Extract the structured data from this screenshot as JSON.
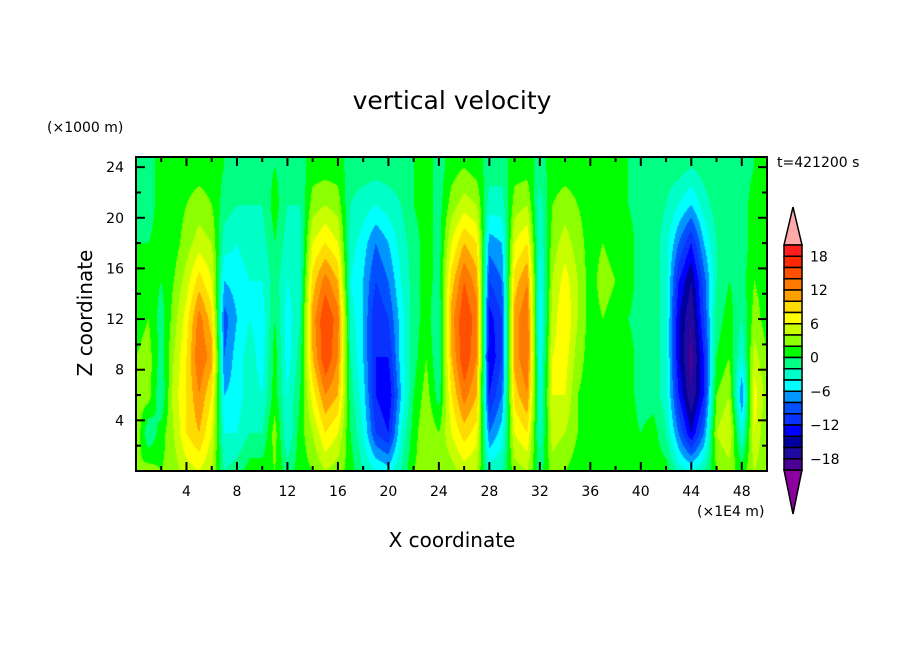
{
  "chart_data": {
    "type": "heatmap",
    "title": "vertical velocity",
    "xlabel": "X coordinate",
    "ylabel": "Z coordinate",
    "x_unit": "(×1E4 m)",
    "y_unit": "(×1000 m)",
    "annotation": "t=421200 s",
    "xlim": [
      0,
      50
    ],
    "ylim": [
      0,
      24.8
    ],
    "xticks": [
      4,
      8,
      12,
      16,
      20,
      24,
      28,
      32,
      36,
      40,
      44,
      48
    ],
    "yticks": [
      4,
      8,
      12,
      16,
      20,
      24
    ],
    "colorbar": {
      "levels": [
        -20,
        -18,
        -16,
        -14,
        -12,
        -10,
        -8,
        -6,
        -4,
        -2,
        0,
        2,
        4,
        6,
        8,
        10,
        12,
        14,
        16,
        18,
        20
      ],
      "labels": [
        18,
        12,
        6,
        0,
        -6,
        -12,
        -18
      ],
      "colors": [
        "#4b0096",
        "#1e0aa0",
        "#0000a0",
        "#0000ff",
        "#0a32ff",
        "#0050ff",
        "#0096ff",
        "#00ffff",
        "#00ffc8",
        "#00ff82",
        "#00ff00",
        "#8cff00",
        "#c8ff00",
        "#ffff00",
        "#ffdc00",
        "#ffa000",
        "#ff7800",
        "#ff5000",
        "#ff2800",
        "#ff1e1e"
      ],
      "over_color": "#ffaaaa",
      "under_color": "#8c00a0"
    },
    "grid_x": [
      0,
      1,
      2,
      3,
      4,
      5,
      6,
      7,
      8,
      9,
      10,
      11,
      12,
      13,
      14,
      15,
      16,
      17,
      18,
      19,
      20,
      21,
      22,
      23,
      24,
      25,
      26,
      27,
      28,
      29,
      30,
      31,
      32,
      33,
      34,
      35,
      36,
      37,
      38,
      39,
      40,
      41,
      42,
      43,
      44,
      45,
      46,
      47,
      48,
      49,
      50
    ],
    "grid_z": [
      0,
      3,
      6,
      9,
      12,
      15,
      18,
      21,
      24
    ],
    "values": [
      [
        2,
        3,
        2,
        3,
        5,
        6,
        4,
        -2,
        -1,
        1,
        1,
        2,
        -1,
        1,
        2,
        4,
        3,
        1,
        -2,
        -4,
        -5,
        -2,
        2,
        3,
        3,
        3,
        5,
        4,
        -3,
        -2,
        3,
        4,
        -1,
        3,
        2,
        1,
        1,
        1,
        1,
        1,
        1,
        1,
        1,
        -3,
        -4,
        -2,
        2,
        3,
        1,
        4,
        2
      ],
      [
        4,
        -2,
        1,
        4,
        8,
        10,
        6,
        -4,
        -4,
        -2,
        -2,
        3,
        -4,
        1,
        4,
        8,
        6,
        0,
        -4,
        -10,
        -12,
        -4,
        1,
        4,
        2,
        6,
        9,
        7,
        -8,
        -5,
        6,
        8,
        -3,
        5,
        4,
        2,
        1,
        1,
        1,
        1,
        0,
        1,
        -2,
        -8,
        -14,
        -8,
        4,
        6,
        -4,
        6,
        2
      ],
      [
        3,
        3,
        -2,
        5,
        8,
        12,
        8,
        -6,
        -5,
        -3,
        -4,
        1,
        -4,
        0,
        7,
        12,
        10,
        -1,
        -5,
        -12,
        -14,
        -6,
        0,
        3,
        -1,
        8,
        13,
        10,
        -12,
        -8,
        9,
        12,
        -4,
        6,
        6,
        2,
        1,
        1,
        1,
        1,
        -1,
        -1,
        -3,
        -12,
        -18,
        -12,
        2,
        4,
        -8,
        7,
        3
      ],
      [
        2,
        3,
        -1,
        4,
        8,
        14,
        11,
        -8,
        -5,
        -3,
        -5,
        1,
        -5,
        -1,
        10,
        16,
        12,
        -2,
        -6,
        -12,
        -12,
        -5,
        -1,
        2,
        -2,
        10,
        16,
        12,
        -14,
        -10,
        11,
        14,
        -5,
        6,
        7,
        3,
        1,
        1,
        1,
        1,
        -1,
        -1,
        -3,
        -14,
        -19,
        -12,
        0,
        2,
        -4,
        5,
        2
      ],
      [
        1,
        2,
        -1,
        3,
        7,
        13,
        9,
        -9,
        -6,
        -4,
        -5,
        0,
        -5,
        -2,
        11,
        16,
        13,
        -3,
        -6,
        -12,
        -10,
        -5,
        -1,
        1,
        -2,
        11,
        16,
        13,
        -13,
        -10,
        11,
        14,
        -6,
        5,
        8,
        4,
        1,
        2,
        1,
        0,
        -1,
        -1,
        -3,
        -14,
        -18,
        -10,
        -1,
        1,
        -2,
        3,
        1
      ],
      [
        1,
        1,
        0,
        2,
        5,
        9,
        6,
        -6,
        -5,
        -4,
        -4,
        -1,
        -4,
        -3,
        9,
        13,
        10,
        -4,
        -6,
        -10,
        -8,
        -4,
        -1,
        1,
        -1,
        9,
        14,
        11,
        -10,
        -8,
        9,
        12,
        -5,
        4,
        7,
        4,
        1,
        3,
        2,
        1,
        -1,
        -1,
        -3,
        -12,
        -16,
        -9,
        -2,
        0,
        -1,
        2,
        1
      ],
      [
        0,
        0,
        1,
        1,
        3,
        5,
        4,
        -3,
        -4,
        -3,
        -3,
        0,
        -3,
        -3,
        6,
        8,
        6,
        -3,
        -5,
        -8,
        -6,
        -3,
        -1,
        1,
        -1,
        6,
        10,
        8,
        -7,
        -6,
        6,
        8,
        -4,
        3,
        5,
        3,
        1,
        2,
        1,
        1,
        -1,
        -1,
        -3,
        -8,
        -12,
        -6,
        -2,
        -1,
        -1,
        1,
        1
      ],
      [
        -1,
        -1,
        1,
        1,
        2,
        3,
        2,
        -1,
        -2,
        -2,
        -2,
        1,
        -2,
        -2,
        3,
        4,
        3,
        -2,
        -3,
        -4,
        -3,
        -2,
        0,
        1,
        -1,
        3,
        5,
        4,
        -3,
        -3,
        3,
        4,
        -3,
        2,
        3,
        2,
        1,
        1,
        1,
        0,
        -1,
        -1,
        -2,
        -4,
        -6,
        -3,
        -1,
        -1,
        -1,
        1,
        1
      ],
      [
        -1,
        -1,
        1,
        1,
        1,
        1,
        1,
        0,
        -1,
        -1,
        -1,
        0,
        -1,
        -1,
        1,
        1,
        1,
        -1,
        -1,
        -1,
        -1,
        -1,
        0,
        1,
        -1,
        1,
        2,
        1,
        -1,
        -1,
        1,
        1,
        -1,
        1,
        1,
        1,
        1,
        1,
        1,
        0,
        -1,
        -1,
        -1,
        -1,
        -2,
        -1,
        -1,
        -1,
        -1,
        0,
        1
      ]
    ]
  }
}
